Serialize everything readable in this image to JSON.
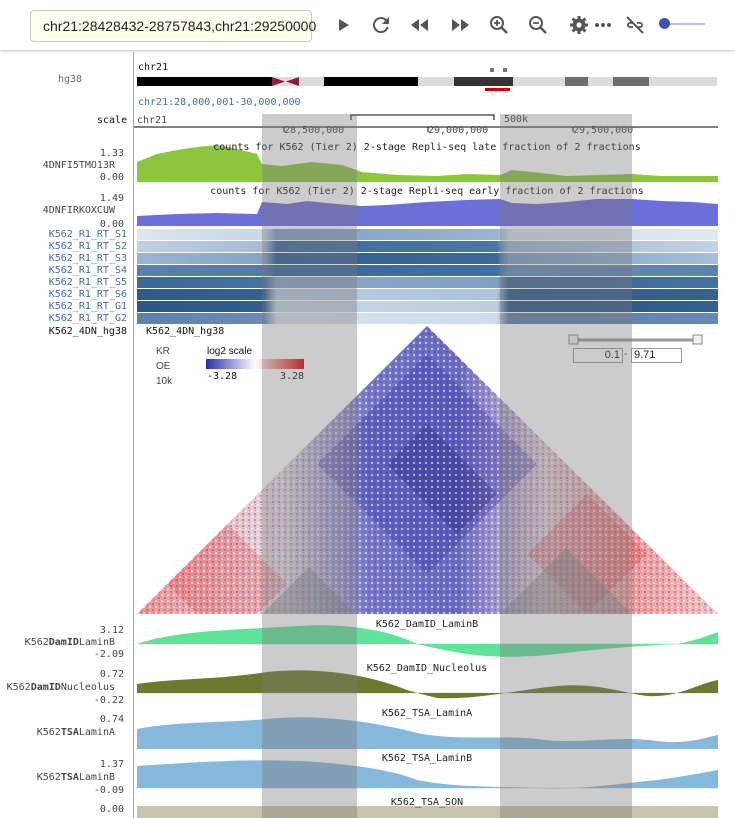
{
  "toolbar": {
    "locus": "chr21:28428432-28757843,chr21:29250000",
    "icons": [
      "play-icon",
      "refresh-icon",
      "rewind-icon",
      "fast-forward-icon",
      "zoom-in-icon",
      "zoom-out-icon",
      "settings-icon",
      "more-icon",
      "unlink-icon"
    ],
    "zoom_slider": 0.0
  },
  "ideogram": {
    "genome": "hg38",
    "chrom": "chr21",
    "range": "chr21:28,000,001-30,000,000"
  },
  "ruler": {
    "label": "scale",
    "chrom": "chr21",
    "ticks": [
      "28,500,000",
      "29,000,000",
      "29,500,000"
    ],
    "scalebar": "500k"
  },
  "signal_tracks": [
    {
      "id": "4DNFI5TMO13R",
      "max": "1.33",
      "min": "0.00",
      "title": "counts for K562 (Tier 2) 2-stage Repli-seq late fraction of 2 fractions",
      "color": "#8cc63f"
    },
    {
      "id": "4DNFIRKOXCUW",
      "max": "1.49",
      "min": "0.00",
      "title": "counts for K562 (Tier 2) 2-stage Repli-seq early fraction of 2 fractions",
      "color": "#6b6fd8"
    }
  ],
  "heat_tracks": [
    "K562_R1_RT_S1",
    "K562_R1_RT_S2",
    "K562_R1_RT_S3",
    "K562_R1_RT_S4",
    "K562_R1_RT_S5",
    "K562_R1_RT_S6",
    "K562_R1_RT_G1",
    "K562_R1_RT_G2"
  ],
  "hic": {
    "name": "K562_4DN_hg38",
    "title": "K562_4DN_hg38",
    "norm": "KR",
    "mode": "OE",
    "resolution": "10k",
    "scale_label": "log2 scale",
    "scale_min": "-3.28",
    "scale_max": "3.28",
    "range_min": "0.1",
    "range_sep": "-",
    "range_max": "9.71"
  },
  "lower_tracks": [
    {
      "side_prefix": "K562",
      "side_bold": "DamID",
      "side_suffix": "LaminB",
      "max": "3.12",
      "min": "-2.09",
      "title": "K562_DamID_LaminB",
      "color": "#5fe39a"
    },
    {
      "side_prefix": "K562",
      "side_bold": "DamID",
      "side_suffix": "Nucleolus",
      "max": "0.72",
      "min": "-0.22",
      "title": "K562_DamID_Nucleolus",
      "color": "#6b7a2e"
    },
    {
      "side_prefix": "K562",
      "side_bold": "TSA",
      "side_suffix": "LaminA",
      "max": "0.74",
      "min": "",
      "title": "K562_TSA_LaminA",
      "color": "#86b8dc"
    },
    {
      "side_prefix": "K562",
      "side_bold": "TSA",
      "side_suffix": "LaminB",
      "max": "1.37",
      "min": "-0.09",
      "title": "K562_TSA_LaminB",
      "color": "#86b8dc"
    },
    {
      "side_prefix": "",
      "side_bold": "",
      "side_suffix": "",
      "max": "0.00",
      "min": "",
      "title": "K562_TSA_SON",
      "color": "#c8c3ad"
    }
  ]
}
